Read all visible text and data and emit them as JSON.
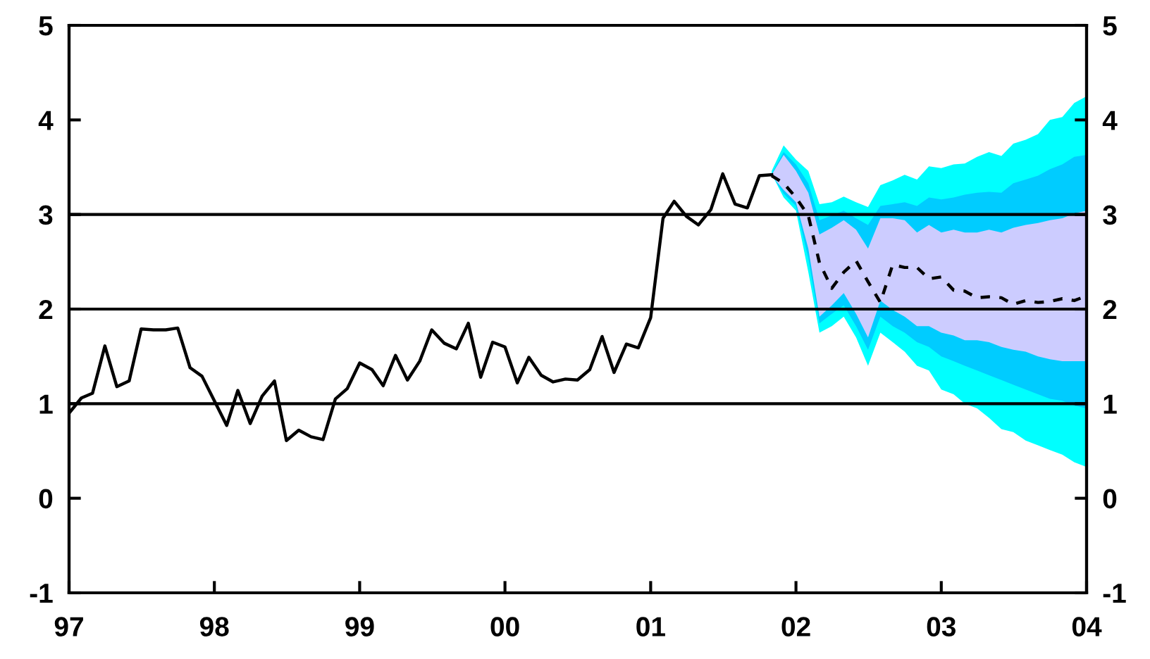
{
  "chart_data": {
    "type": "line",
    "xlim": [
      "1997",
      "2004"
    ],
    "ylim": [
      -1,
      5
    ],
    "y2lim": [
      -1,
      5
    ],
    "xticks": [
      {
        "value": "1997",
        "label": "97"
      },
      {
        "value": "1998",
        "label": "98"
      },
      {
        "value": "1999",
        "label": "99"
      },
      {
        "value": "2000",
        "label": "00"
      },
      {
        "value": "2001",
        "label": "01"
      },
      {
        "value": "2002",
        "label": "02"
      },
      {
        "value": "2003",
        "label": "03"
      },
      {
        "value": "2004",
        "label": "04"
      }
    ],
    "yticks": [
      -1,
      0,
      1,
      2,
      3,
      4,
      5
    ],
    "y2ticks": [
      -1,
      0,
      1,
      2,
      3,
      4,
      5
    ],
    "ref_lines": [
      {
        "axis": "y",
        "value": 1,
        "color": "#000000"
      },
      {
        "axis": "y",
        "value": 2,
        "color": "#000000"
      },
      {
        "axis": "y",
        "value": 3,
        "color": "#000000"
      }
    ],
    "grid": false,
    "legend": false,
    "marker": "none",
    "series": [
      {
        "color": "#00ffff",
        "x": [
          "2001-11",
          "2001-12",
          "2002-01",
          "2002-02",
          "2002-03",
          "2002-04",
          "2002-05",
          "2002-06",
          "2002-07",
          "2002-08",
          "2002-09",
          "2002-10",
          "2002-11",
          "2002-12",
          "2003-01",
          "2003-02",
          "2003-03",
          "2003-04",
          "2003-05",
          "2003-06",
          "2003-07",
          "2003-08",
          "2003-09",
          "2003-10",
          "2003-11",
          "2003-12",
          "2004-01"
        ],
        "values": [
          null,
          null,
          null,
          null,
          null,
          null,
          null,
          null,
          null,
          null,
          null,
          null,
          null,
          null,
          null,
          null,
          null,
          null,
          null,
          null,
          null,
          null,
          null,
          null,
          null,
          null,
          null
        ],
        "lower": [
          3.43,
          3.18,
          3.04,
          2.39,
          1.75,
          1.82,
          1.92,
          1.7,
          1.4,
          1.75,
          1.65,
          1.55,
          1.4,
          1.35,
          1.15,
          1.1,
          1.0,
          0.95,
          0.85,
          0.73,
          0.7,
          0.61,
          0.56,
          0.51,
          0.46,
          0.38,
          0.33
        ],
        "upper": [
          3.46,
          3.73,
          3.58,
          3.46,
          3.11,
          3.13,
          3.19,
          3.13,
          3.08,
          3.31,
          3.36,
          3.42,
          3.37,
          3.51,
          3.49,
          3.53,
          3.54,
          3.61,
          3.66,
          3.62,
          3.75,
          3.79,
          3.85,
          4.0,
          4.03,
          4.18,
          4.25
        ]
      },
      {
        "color": "#00ccff",
        "x": [
          "2001-11",
          "2001-12",
          "2002-01",
          "2002-02",
          "2002-03",
          "2002-04",
          "2002-05",
          "2002-06",
          "2002-07",
          "2002-08",
          "2002-09",
          "2002-10",
          "2002-11",
          "2002-12",
          "2003-01",
          "2003-02",
          "2003-03",
          "2003-04",
          "2003-05",
          "2003-06",
          "2003-07",
          "2003-08",
          "2003-09",
          "2003-10",
          "2003-11",
          "2003-12",
          "2004-01"
        ],
        "values": [
          null,
          null,
          null,
          null,
          null,
          null,
          null,
          null,
          null,
          null,
          null,
          null,
          null,
          null,
          null,
          null,
          null,
          null,
          null,
          null,
          null,
          null,
          null,
          null,
          null,
          null,
          null
        ],
        "lower": [
          3.42,
          3.22,
          3.09,
          2.54,
          1.85,
          1.95,
          2.04,
          1.82,
          1.57,
          1.92,
          1.82,
          1.75,
          1.65,
          1.6,
          1.5,
          1.45,
          1.4,
          1.35,
          1.3,
          1.25,
          1.2,
          1.15,
          1.1,
          1.05,
          1.03,
          0.98,
          0.95
        ],
        "upper": [
          3.43,
          3.66,
          3.53,
          3.33,
          2.94,
          2.99,
          3.04,
          2.96,
          2.89,
          3.09,
          3.11,
          3.13,
          3.09,
          3.18,
          3.16,
          3.18,
          3.21,
          3.23,
          3.24,
          3.23,
          3.33,
          3.37,
          3.41,
          3.48,
          3.53,
          3.61,
          3.63
        ]
      },
      {
        "color": "#ccccff",
        "x": [
          "2001-11",
          "2001-12",
          "2002-01",
          "2002-02",
          "2002-03",
          "2002-04",
          "2002-05",
          "2002-06",
          "2002-07",
          "2002-08",
          "2002-09",
          "2002-10",
          "2002-11",
          "2002-12",
          "2003-01",
          "2003-02",
          "2003-03",
          "2003-04",
          "2003-05",
          "2003-06",
          "2003-07",
          "2003-08",
          "2003-09",
          "2003-10",
          "2003-11",
          "2003-12",
          "2004-01"
        ],
        "values": [
          null,
          null,
          null,
          null,
          null,
          null,
          null,
          null,
          null,
          null,
          null,
          null,
          null,
          null,
          null,
          null,
          null,
          null,
          null,
          null,
          null,
          null,
          null,
          null,
          null,
          null,
          null
        ],
        "lower": [
          3.41,
          3.26,
          3.13,
          2.64,
          1.92,
          2.04,
          2.17,
          1.95,
          1.7,
          2.09,
          1.99,
          1.92,
          1.82,
          1.82,
          1.75,
          1.72,
          1.67,
          1.67,
          1.65,
          1.6,
          1.57,
          1.55,
          1.5,
          1.47,
          1.45,
          1.45,
          1.45
        ],
        "upper": [
          3.42,
          3.63,
          3.46,
          3.23,
          2.79,
          2.86,
          2.94,
          2.84,
          2.64,
          2.96,
          2.96,
          2.94,
          2.81,
          2.89,
          2.81,
          2.84,
          2.81,
          2.81,
          2.84,
          2.81,
          2.86,
          2.89,
          2.91,
          2.94,
          2.96,
          3.01,
          3.04
        ]
      },
      {
        "type": "line",
        "color": "#000000",
        "line_style": "dashed",
        "x": [
          "2001-11",
          "2001-12",
          "2002-01",
          "2002-02",
          "2002-03",
          "2002-04",
          "2002-05",
          "2002-06",
          "2002-07",
          "2002-08",
          "2002-09",
          "2002-10",
          "2002-11",
          "2002-12",
          "2003-01",
          "2003-02",
          "2003-03",
          "2003-04",
          "2003-05",
          "2003-06",
          "2003-07",
          "2003-08",
          "2003-09",
          "2003-10",
          "2003-11",
          "2003-12",
          "2004-01"
        ],
        "values": [
          3.41,
          3.33,
          3.18,
          2.99,
          2.49,
          2.22,
          2.39,
          2.51,
          2.29,
          2.07,
          2.47,
          2.44,
          2.44,
          2.32,
          2.34,
          2.2,
          2.19,
          2.12,
          2.13,
          2.12,
          2.05,
          2.09,
          2.07,
          2.08,
          2.11,
          2.09,
          2.14
        ]
      },
      {
        "type": "line",
        "color": "#000000",
        "line_style": "solid",
        "x": [
          "1997-01",
          "1997-02",
          "1997-03",
          "1997-04",
          "1997-05",
          "1997-06",
          "1997-07",
          "1997-08",
          "1997-09",
          "1997-10",
          "1997-11",
          "1997-12",
          "1998-01",
          "1998-02",
          "1998-03",
          "1998-04",
          "1998-05",
          "1998-06",
          "1998-07",
          "1998-08",
          "1998-09",
          "1998-10",
          "1998-11",
          "1998-12",
          "1999-01",
          "1999-02",
          "1999-03",
          "1999-04",
          "1999-05",
          "1999-06",
          "1999-07",
          "1999-08",
          "1999-09",
          "1999-10",
          "1999-11",
          "1999-12",
          "2000-01",
          "2000-02",
          "2000-03",
          "2000-04",
          "2000-05",
          "2000-06",
          "2000-07",
          "2000-08",
          "2000-09",
          "2000-10",
          "2000-11",
          "2000-12",
          "2001-01",
          "2001-02",
          "2001-03",
          "2001-04",
          "2001-05",
          "2001-06",
          "2001-07",
          "2001-08",
          "2001-09",
          "2001-10",
          "2001-11"
        ],
        "values": [
          0.9,
          1.06,
          1.11,
          1.61,
          1.18,
          1.24,
          1.79,
          1.78,
          1.78,
          1.8,
          1.38,
          1.29,
          1.03,
          0.77,
          1.14,
          0.79,
          1.08,
          1.24,
          0.61,
          0.72,
          0.65,
          0.62,
          1.05,
          1.16,
          1.43,
          1.36,
          1.19,
          1.51,
          1.25,
          1.45,
          1.78,
          1.64,
          1.58,
          1.85,
          1.28,
          1.65,
          1.6,
          1.22,
          1.49,
          1.3,
          1.23,
          1.26,
          1.25,
          1.36,
          1.71,
          1.33,
          1.63,
          1.59,
          1.91,
          2.96,
          3.14,
          2.98,
          2.89,
          3.05,
          3.43,
          3.11,
          3.07,
          3.41,
          3.42
        ]
      }
    ]
  }
}
